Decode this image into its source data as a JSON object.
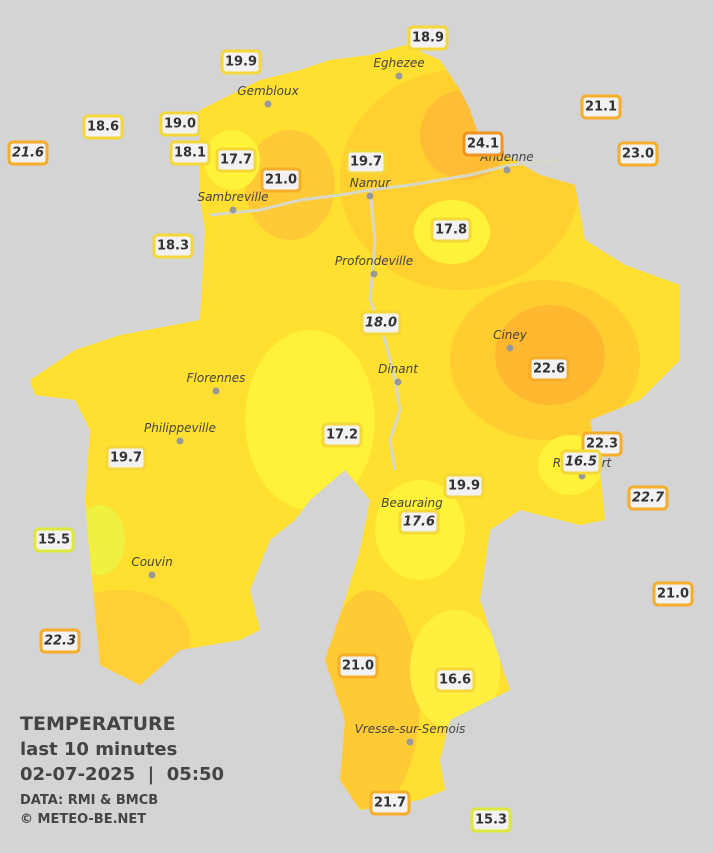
{
  "legend": {
    "title": "TEMPERATURE",
    "period": "last 10 minutes",
    "timestamp": "02-07-2025  |  05:50",
    "source": "DATA: RMI & BMCB",
    "copyright": "© METEO-BE.NET"
  },
  "cities": [
    "Eghezee",
    "Gembloux",
    "Andenne",
    "Namur",
    "Sambreville",
    "Profondeville",
    "Ciney",
    "Dinant",
    "Florennes",
    "Philippeville",
    "Rochefort",
    "Beauraing",
    "Couvin",
    "Vresse-sur-Semois"
  ],
  "stations": [
    "18.9",
    "19.9",
    "21.1",
    "18.6",
    "19.0",
    "21.6",
    "24.1",
    "23.0",
    "18.1",
    "17.7",
    "19.7",
    "21.0",
    "17.8",
    "18.3",
    "18.0",
    "22.6",
    "17.2",
    "22.3",
    "16.5",
    "19.7",
    "22.7",
    "19.9",
    "17.6",
    "15.5",
    "21.0",
    "22.3",
    "21.0",
    "16.6",
    "21.7",
    "15.3"
  ]
}
